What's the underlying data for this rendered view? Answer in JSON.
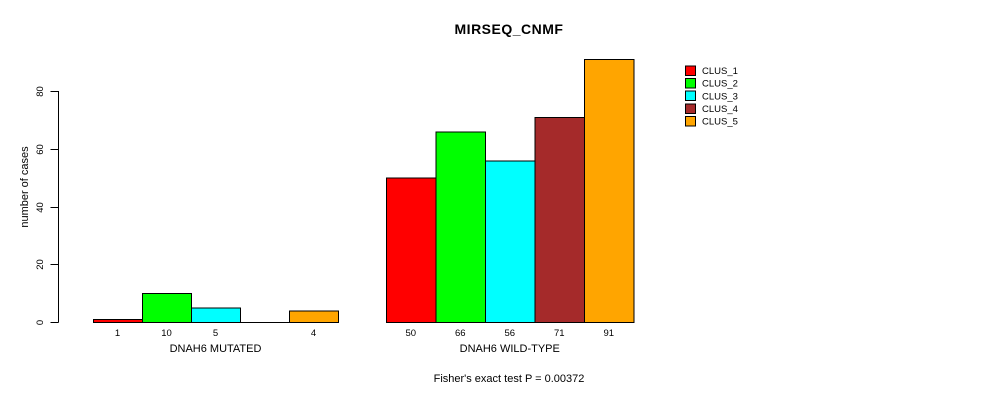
{
  "chart_data": {
    "type": "bar",
    "title": "MIRSEQ_CNMF",
    "ylabel": "number of cases",
    "xlabel": "",
    "ylim": [
      0,
      80
    ],
    "yticks": [
      0,
      20,
      40,
      60,
      80
    ],
    "grid": false,
    "legend_position": "top-right",
    "categories": [
      "DNAH6 MUTATED",
      "DNAH6 WILD-TYPE"
    ],
    "series": [
      {
        "name": "CLUS_1",
        "color": "#FF0000",
        "values": [
          1,
          50
        ]
      },
      {
        "name": "CLUS_2",
        "color": "#00FF00",
        "values": [
          10,
          66
        ]
      },
      {
        "name": "CLUS_3",
        "color": "#00FFFF",
        "values": [
          5,
          56
        ]
      },
      {
        "name": "CLUS_4",
        "color": "#A52A2A",
        "values": [
          0,
          71
        ]
      },
      {
        "name": "CLUS_5",
        "color": "#FFA500",
        "values": [
          4,
          91
        ]
      }
    ],
    "bar_value_labels": [
      "1",
      "10",
      "5",
      "",
      "4",
      "50",
      "66",
      "56",
      "71",
      "91"
    ],
    "annotation": "Fisher's exact test P = 0.00372"
  },
  "colors": {
    "background": "#ffffff",
    "axis": "#000000",
    "text": "#000000"
  }
}
